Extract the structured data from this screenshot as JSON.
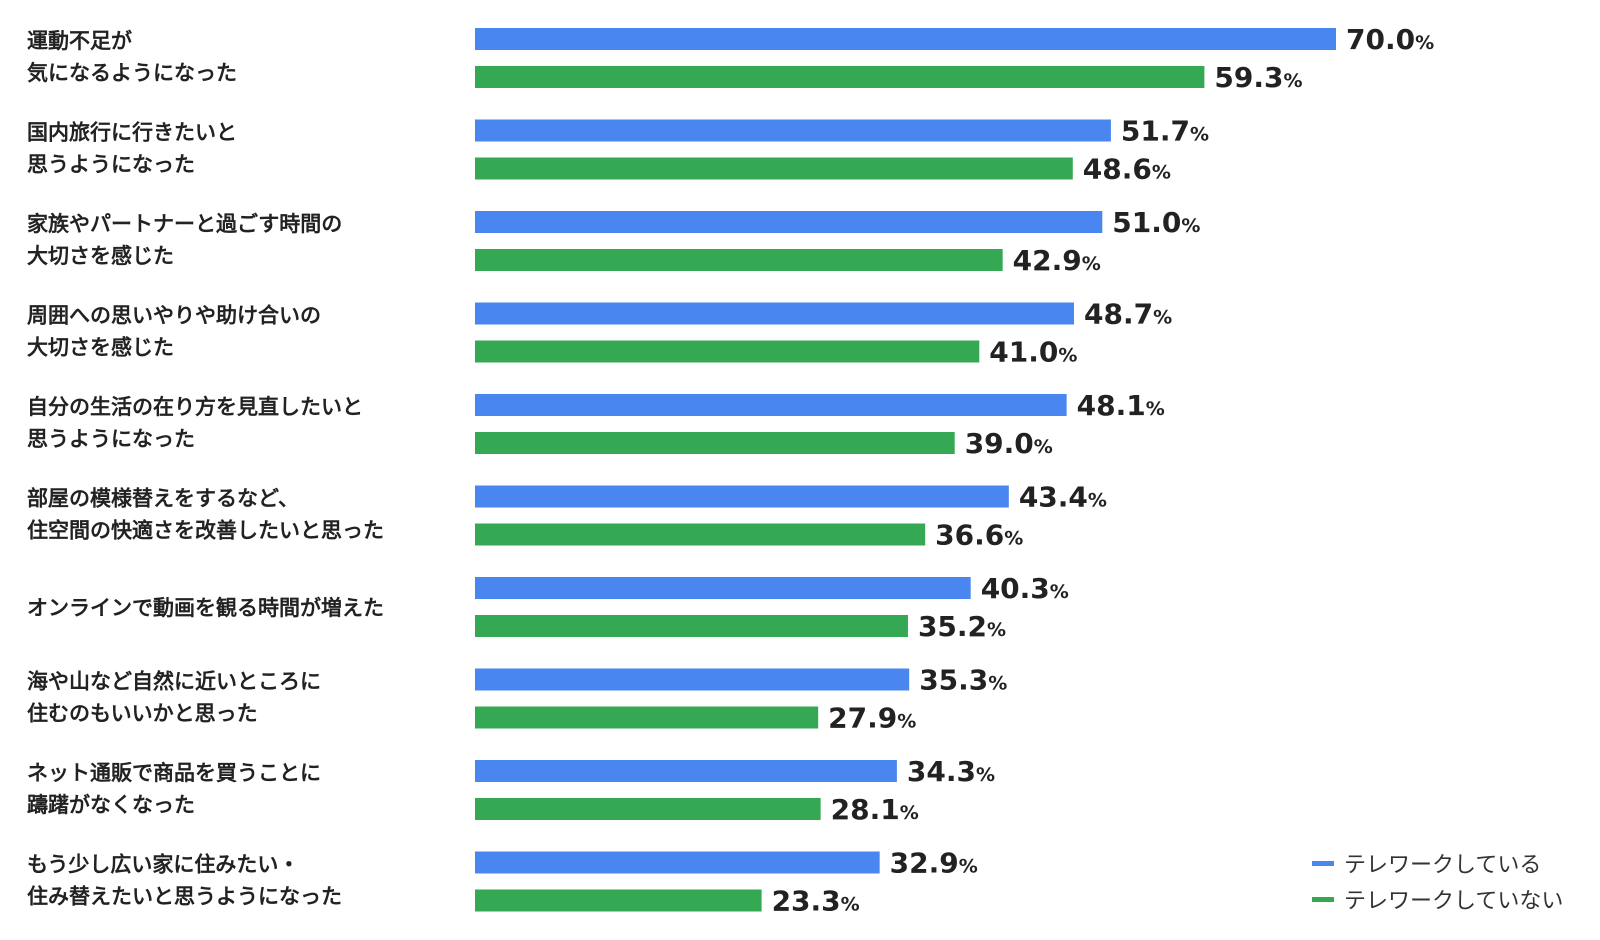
{
  "chart_data": {
    "type": "bar",
    "orientation": "horizontal",
    "categories": [
      "運動不足が\n気になるようになった",
      "国内旅行に行きたいと\n思うようになった",
      "家族やパートナーと過ごす時間の\n大切さを感じた",
      "周囲への思いやりや助け合いの\n大切さを感じた",
      "自分の生活の在り方を見直したいと\n思うようになった",
      "部屋の模様替えをするなど、\n住空間の快適さを改善したいと思った",
      "オンラインで動画を観る時間が増えた",
      "海や山など自然に近いところに\n住むのもいいかと思った",
      "ネット通販で商品を買うことに\n躊躇がなくなった",
      "もう少し広い家に住みたい・\n住み替えたいと思うようになった"
    ],
    "series": [
      {
        "name": "テレワークしている",
        "color": "#4a86f0",
        "values": [
          70.0,
          51.7,
          51.0,
          48.7,
          48.1,
          43.4,
          40.3,
          35.3,
          34.3,
          32.9
        ]
      },
      {
        "name": "テレワークしていない",
        "color": "#35a853",
        "values": [
          59.3,
          48.6,
          42.9,
          41.0,
          39.0,
          36.6,
          35.2,
          27.9,
          28.1,
          23.3
        ]
      }
    ],
    "value_unit": "%",
    "xlim": [
      0,
      100
    ],
    "grid": false,
    "legend_position": "bottom-right"
  }
}
